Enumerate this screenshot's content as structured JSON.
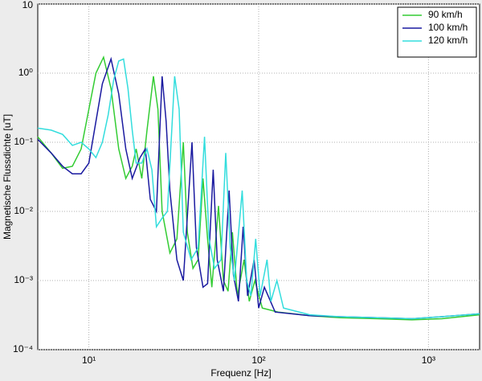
{
  "chart_data": {
    "type": "line",
    "x_label": "Frequenz [Hz]",
    "y_label": "Magnetische Flussdichte [uT]",
    "xscale": "log",
    "yscale": "log",
    "grid": true,
    "legend": "top-right",
    "xlim": [
      5,
      2000
    ],
    "ylim": [
      0.0001,
      10
    ],
    "xticks": [
      {
        "value": 10,
        "label": "10¹"
      },
      {
        "value": 100,
        "label": "10²"
      },
      {
        "value": 1000,
        "label": "10³"
      }
    ],
    "yticks": [
      10,
      {
        "value": 1,
        "label": "10⁰"
      },
      {
        "value": 0.1,
        "label": "10⁻¹"
      },
      {
        "value": 0.01,
        "label": "10⁻²"
      },
      {
        "value": 0.001,
        "label": "10⁻³"
      },
      {
        "value": 0.0001,
        "label": "10⁻⁴"
      }
    ],
    "series": [
      {
        "name": "90 km/h",
        "color": "#33cc33",
        "x": [
          5,
          6,
          7,
          8,
          9,
          10,
          11,
          12.2,
          13.5,
          15,
          16.5,
          18,
          19,
          20.5,
          22,
          24,
          25.5,
          27,
          30,
          33,
          36,
          38,
          41,
          44,
          47,
          50,
          53,
          58,
          62,
          66,
          70,
          75,
          82,
          88,
          95,
          105,
          130,
          200,
          300,
          500,
          800,
          1200,
          2000
        ],
        "values": [
          0.12,
          0.07,
          0.042,
          0.045,
          0.08,
          0.3,
          1.0,
          1.7,
          0.6,
          0.08,
          0.03,
          0.045,
          0.08,
          0.03,
          0.15,
          0.9,
          0.3,
          0.01,
          0.0025,
          0.004,
          0.1,
          0.005,
          0.0015,
          0.002,
          0.03,
          0.004,
          0.0008,
          0.012,
          0.001,
          0.0007,
          0.005,
          0.0006,
          0.002,
          0.0005,
          0.001,
          0.0004,
          0.00035,
          0.00031,
          0.00029,
          0.00028,
          0.00027,
          0.00028,
          0.00032
        ]
      },
      {
        "name": "100 km/h",
        "color": "#1a1aa0",
        "x": [
          5,
          6,
          7,
          8,
          9,
          10,
          11,
          12,
          13.5,
          15,
          16.5,
          18,
          20,
          21.5,
          23,
          25,
          27,
          28.5,
          30,
          33,
          36,
          40.5,
          43,
          47,
          50,
          54,
          57,
          62,
          67,
          71,
          76,
          81,
          86,
          94,
          100,
          108,
          125,
          200,
          300,
          500,
          800,
          1200,
          2000
        ],
        "values": [
          0.11,
          0.07,
          0.045,
          0.035,
          0.035,
          0.05,
          0.2,
          0.7,
          1.6,
          0.5,
          0.08,
          0.03,
          0.06,
          0.08,
          0.015,
          0.01,
          0.9,
          0.2,
          0.02,
          0.002,
          0.001,
          0.1,
          0.003,
          0.0008,
          0.0009,
          0.04,
          0.002,
          0.0007,
          0.02,
          0.0012,
          0.0005,
          0.006,
          0.0006,
          0.002,
          0.0004,
          0.0008,
          0.00035,
          0.00031,
          0.0003,
          0.00029,
          0.00028,
          0.0003,
          0.00033
        ]
      },
      {
        "name": "120 km/h",
        "color": "#33dddd",
        "x": [
          5,
          6,
          7,
          8,
          9,
          10,
          11,
          12,
          13,
          14,
          15,
          16,
          17,
          18,
          19,
          20.5,
          22,
          23.5,
          25,
          27,
          29,
          30.5,
          32,
          34,
          36,
          40,
          44,
          48,
          51,
          55,
          60,
          64,
          68,
          72,
          80,
          85,
          90,
          96,
          102,
          112,
          118,
          128,
          140,
          200,
          300,
          500,
          800,
          1200,
          2000
        ],
        "values": [
          0.16,
          0.15,
          0.13,
          0.09,
          0.1,
          0.08,
          0.06,
          0.1,
          0.25,
          0.8,
          1.5,
          1.6,
          0.6,
          0.15,
          0.05,
          0.05,
          0.08,
          0.04,
          0.006,
          0.008,
          0.01,
          0.1,
          0.9,
          0.3,
          0.005,
          0.002,
          0.003,
          0.12,
          0.004,
          0.0015,
          0.002,
          0.07,
          0.003,
          0.001,
          0.02,
          0.001,
          0.0006,
          0.004,
          0.0006,
          0.002,
          0.0005,
          0.001,
          0.0004,
          0.00032,
          0.0003,
          0.00029,
          0.00028,
          0.0003,
          0.00033
        ]
      }
    ]
  }
}
